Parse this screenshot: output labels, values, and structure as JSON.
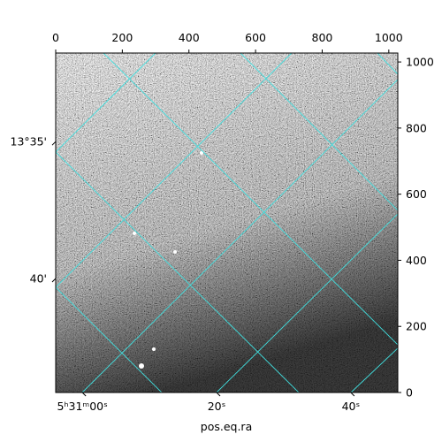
{
  "chart_data": {
    "type": "image",
    "xlabel": "pos.eq.ra",
    "xlim": [
      0,
      1027
    ],
    "ylim": [
      0,
      1027
    ],
    "xticks": [
      0,
      200,
      400,
      600,
      800,
      1000
    ],
    "yticks": [
      0,
      200,
      400,
      600,
      800,
      1000
    ],
    "ra_ticks": [
      {
        "value": 80,
        "label": "5ʰ31ᵐ00ˢ"
      },
      {
        "value": 483,
        "label": "20ˢ"
      },
      {
        "value": 886,
        "label": "40ˢ"
      }
    ],
    "dec_ticks": [
      {
        "value": 759,
        "label": "13°35'"
      },
      {
        "value": 345,
        "label": "40'"
      }
    ],
    "grid_color": "#40e0e0"
  }
}
